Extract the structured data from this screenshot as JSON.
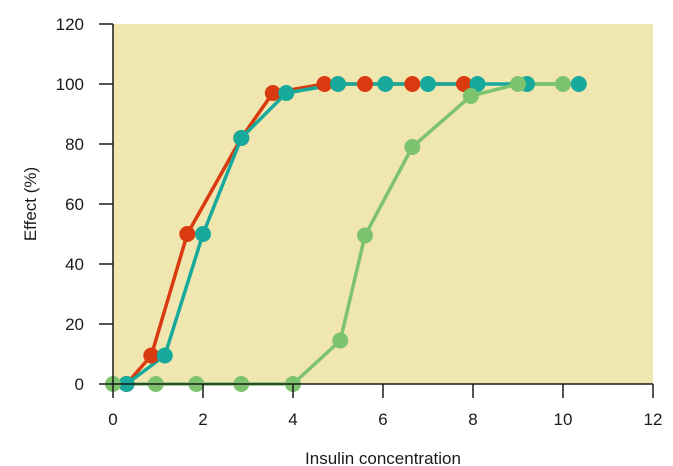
{
  "chart_data": {
    "type": "line",
    "title": "",
    "xlabel": "Insulin concentration",
    "ylabel": "Effect (%)",
    "xlim": [
      0,
      12
    ],
    "ylim": [
      0,
      120
    ],
    "xticks": [
      0,
      2,
      4,
      6,
      8,
      10,
      12
    ],
    "yticks": [
      0,
      20,
      40,
      60,
      80,
      100,
      120
    ],
    "grid": false,
    "plot_background": "#efe6b0",
    "series": [
      {
        "color": "#d93a0f",
        "x": [
          0.3,
          0.85,
          1.65,
          2.85,
          3.55,
          4.7,
          5.6,
          6.65,
          7.8
        ],
        "y": [
          0,
          9.5,
          50,
          82,
          97,
          100,
          100,
          100,
          100
        ]
      },
      {
        "color": "#17a99c",
        "x": [
          0.3,
          1.15,
          2.0,
          2.85,
          3.85,
          5.0,
          6.05,
          7.0,
          8.1,
          9.2,
          10.35
        ],
        "y": [
          0,
          9.5,
          50,
          82,
          97,
          100,
          100,
          100,
          100,
          100,
          100
        ]
      },
      {
        "color": "#7dc36e",
        "x": [
          0.0,
          0.95,
          1.85,
          2.85,
          4.0,
          5.05,
          5.6,
          6.65,
          7.95,
          9.0,
          10.0
        ],
        "y": [
          0,
          0,
          0,
          0,
          0,
          14.5,
          49.5,
          79,
          96,
          100,
          100
        ]
      }
    ]
  }
}
